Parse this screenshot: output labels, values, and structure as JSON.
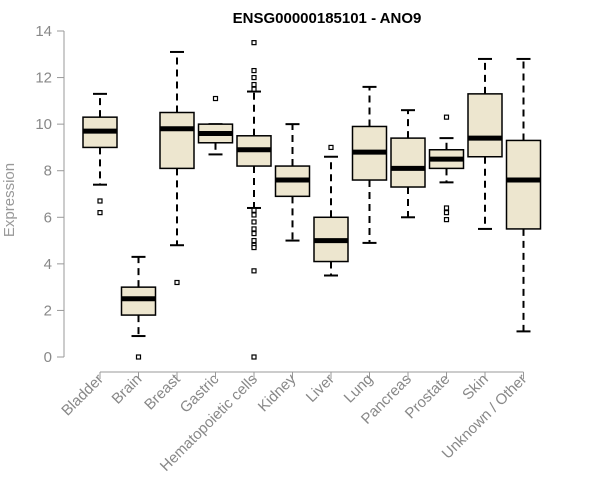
{
  "chart_data": {
    "type": "boxplot",
    "title": "ENSG00000185101 - ANO9",
    "ylabel": "Expression",
    "xlabel": "",
    "ylim": [
      0,
      14
    ],
    "yticks": [
      0,
      2,
      4,
      6,
      8,
      10,
      12,
      14
    ],
    "box_color": "#ede6cf",
    "categories": [
      "Bladder",
      "Brain",
      "Breast",
      "Gastric",
      "Hematopoietic cells",
      "Kidney",
      "Liver",
      "Lung",
      "Pancreas",
      "Prostate",
      "Skin",
      "Unknown / Other"
    ],
    "boxes": [
      {
        "whisker_low": 7.4,
        "q1": 9.0,
        "median": 9.7,
        "q3": 10.3,
        "whisker_high": 11.3,
        "outliers": [
          6.7,
          6.2
        ]
      },
      {
        "whisker_low": 0.9,
        "q1": 1.8,
        "median": 2.5,
        "q3": 3.0,
        "whisker_high": 4.3,
        "outliers": [
          0.0
        ]
      },
      {
        "whisker_low": 4.8,
        "q1": 8.1,
        "median": 9.8,
        "q3": 10.5,
        "whisker_high": 13.1,
        "outliers": [
          3.2
        ]
      },
      {
        "whisker_low": 8.7,
        "q1": 9.2,
        "median": 9.6,
        "q3": 10.0,
        "whisker_high": 10.0,
        "outliers": [
          11.1
        ]
      },
      {
        "whisker_low": 6.4,
        "q1": 8.2,
        "median": 8.9,
        "q3": 9.5,
        "whisker_high": 11.4,
        "outliers": [
          13.5,
          12.3,
          12.0,
          11.7,
          11.5,
          6.3,
          6.1,
          5.8,
          5.5,
          5.3,
          5.0,
          4.8,
          4.7,
          3.7,
          0.0
        ]
      },
      {
        "whisker_low": 5.0,
        "q1": 6.9,
        "median": 7.6,
        "q3": 8.2,
        "whisker_high": 10.0,
        "outliers": []
      },
      {
        "whisker_low": 3.5,
        "q1": 4.1,
        "median": 5.0,
        "q3": 6.0,
        "whisker_high": 8.6,
        "outliers": [
          9.0
        ]
      },
      {
        "whisker_low": 4.9,
        "q1": 7.6,
        "median": 8.8,
        "q3": 9.9,
        "whisker_high": 11.6,
        "outliers": []
      },
      {
        "whisker_low": 6.0,
        "q1": 7.3,
        "median": 8.1,
        "q3": 9.4,
        "whisker_high": 10.6,
        "outliers": []
      },
      {
        "whisker_low": 7.5,
        "q1": 8.1,
        "median": 8.5,
        "q3": 8.9,
        "whisker_high": 9.4,
        "outliers": [
          10.3,
          6.4,
          6.2,
          5.9
        ]
      },
      {
        "whisker_low": 5.5,
        "q1": 8.6,
        "median": 9.4,
        "q3": 11.3,
        "whisker_high": 12.8,
        "outliers": []
      },
      {
        "whisker_low": 1.1,
        "q1": 5.5,
        "median": 7.6,
        "q3": 9.3,
        "whisker_high": 12.8,
        "outliers": []
      }
    ]
  }
}
